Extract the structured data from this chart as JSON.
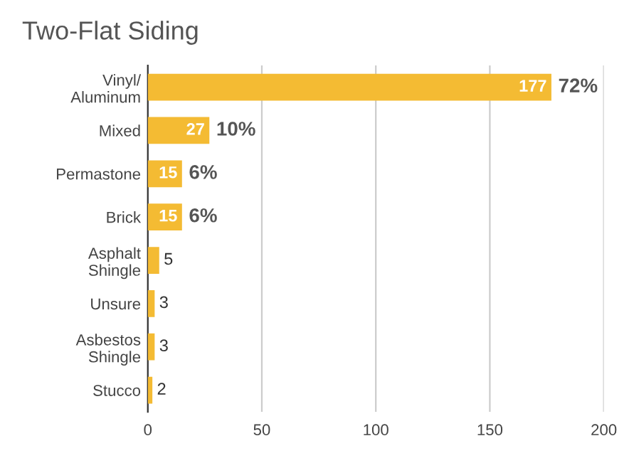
{
  "chart_data": {
    "type": "bar",
    "orientation": "horizontal",
    "title": "Two-Flat Siding",
    "categories": [
      "Vinyl/\nAluminum",
      "Mixed",
      "Permastone",
      "Brick",
      "Asphalt\nShingle",
      "Unsure",
      "Asbestos\nShingle",
      "Stucco"
    ],
    "values": [
      177,
      27,
      15,
      15,
      5,
      3,
      3,
      2
    ],
    "value_labels": [
      "177",
      "27",
      "15",
      "15",
      "5",
      "3",
      "3",
      "2"
    ],
    "color": "#f4bb33",
    "xlim": [
      0,
      200
    ],
    "xticks": [
      0,
      50,
      100,
      150,
      200
    ],
    "grid": "x",
    "legend": false,
    "annotations": [
      {
        "text": "72%",
        "x": 177,
        "y": "Vinyl/\nAluminum"
      },
      {
        "text": "10%",
        "x": 27,
        "y": "Mixed"
      },
      {
        "text": "6%",
        "x": 15,
        "y": "Permastone"
      },
      {
        "text": "6%",
        "x": 15,
        "y": "Brick"
      }
    ]
  }
}
